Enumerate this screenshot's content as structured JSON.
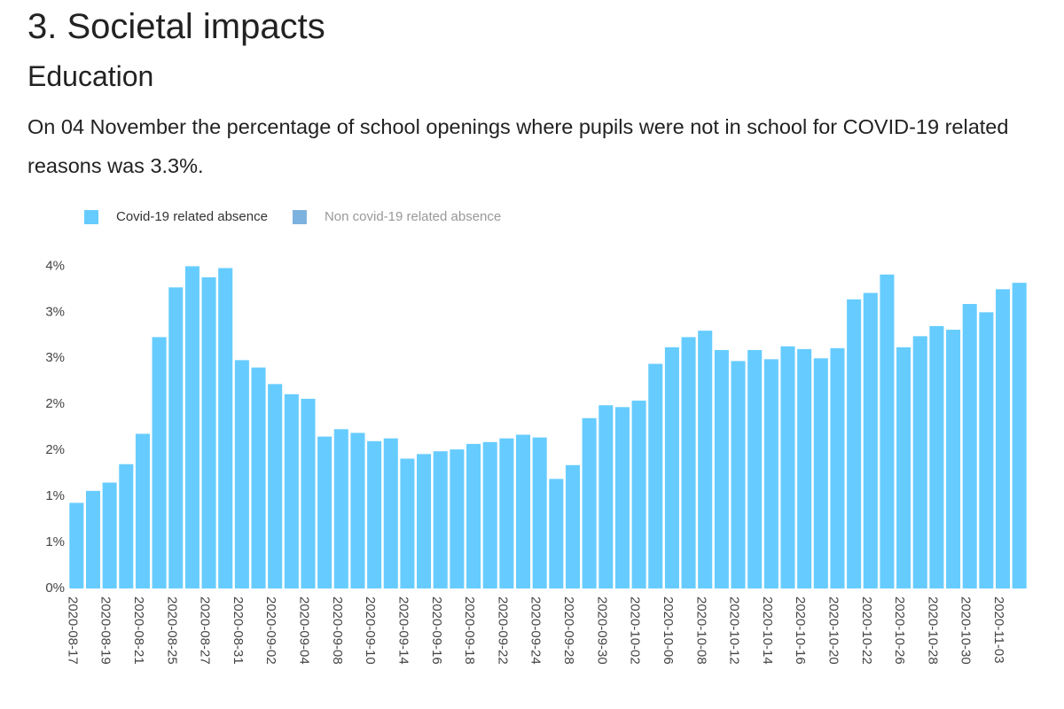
{
  "header": {
    "title": "3. Societal impacts",
    "subtitle": "Education",
    "text": "On 04 November the percentage of school openings where pupils were not in school for COVID-19 related reasons was 3.3%."
  },
  "chart_data": {
    "type": "bar",
    "categories": [
      "2020-08-17",
      null,
      "2020-08-19",
      null,
      "2020-08-21",
      null,
      "2020-08-25",
      null,
      "2020-08-27",
      null,
      "2020-08-31",
      null,
      "2020-09-02",
      null,
      "2020-09-04",
      null,
      "2020-09-08",
      null,
      "2020-09-10",
      null,
      "2020-09-14",
      null,
      "2020-09-16",
      null,
      "2020-09-18",
      null,
      "2020-09-22",
      null,
      "2020-09-24",
      null,
      "2020-09-28",
      null,
      "2020-09-30",
      null,
      "2020-10-02",
      null,
      "2020-10-06",
      null,
      "2020-10-08",
      null,
      "2020-10-12",
      null,
      "2020-10-14",
      null,
      "2020-10-16",
      null,
      "2020-10-20",
      null,
      "2020-10-22",
      null,
      "2020-10-26",
      null,
      "2020-10-28",
      null,
      "2020-10-30",
      null,
      "2020-11-03",
      null
    ],
    "series": [
      {
        "name": "Covid-19 related absence",
        "color": "#66ccff",
        "values": [
          0.93,
          1.06,
          1.15,
          1.35,
          1.68,
          2.73,
          3.27,
          3.5,
          3.38,
          3.48,
          2.48,
          2.4,
          2.22,
          2.11,
          2.06,
          1.65,
          1.73,
          1.69,
          1.6,
          1.63,
          1.41,
          1.46,
          1.49,
          1.51,
          1.57,
          1.59,
          1.63,
          1.67,
          1.64,
          1.19,
          1.34,
          1.85,
          1.99,
          1.97,
          2.04,
          2.44,
          2.62,
          2.73,
          2.8,
          2.59,
          2.47,
          2.59,
          2.49,
          2.63,
          2.6,
          2.5,
          2.61,
          3.14,
          3.21,
          3.41,
          2.62,
          2.74,
          2.85,
          2.81,
          3.09,
          3.0,
          3.25,
          3.32
        ]
      }
    ],
    "hidden_series": [
      {
        "name": "Non covid-19 related absence",
        "color": "#7cb2de"
      }
    ],
    "ylim": [
      0,
      3.6
    ],
    "yticks": [
      {
        "value": 0,
        "label": "0%"
      },
      {
        "value": 0.5,
        "label": "1%"
      },
      {
        "value": 1,
        "label": "1%"
      },
      {
        "value": 1.5,
        "label": "2%"
      },
      {
        "value": 2,
        "label": "2%"
      },
      {
        "value": 2.5,
        "label": "3%"
      },
      {
        "value": 3,
        "label": "3%"
      },
      {
        "value": 3.5,
        "label": "4%"
      }
    ],
    "grid": false
  }
}
